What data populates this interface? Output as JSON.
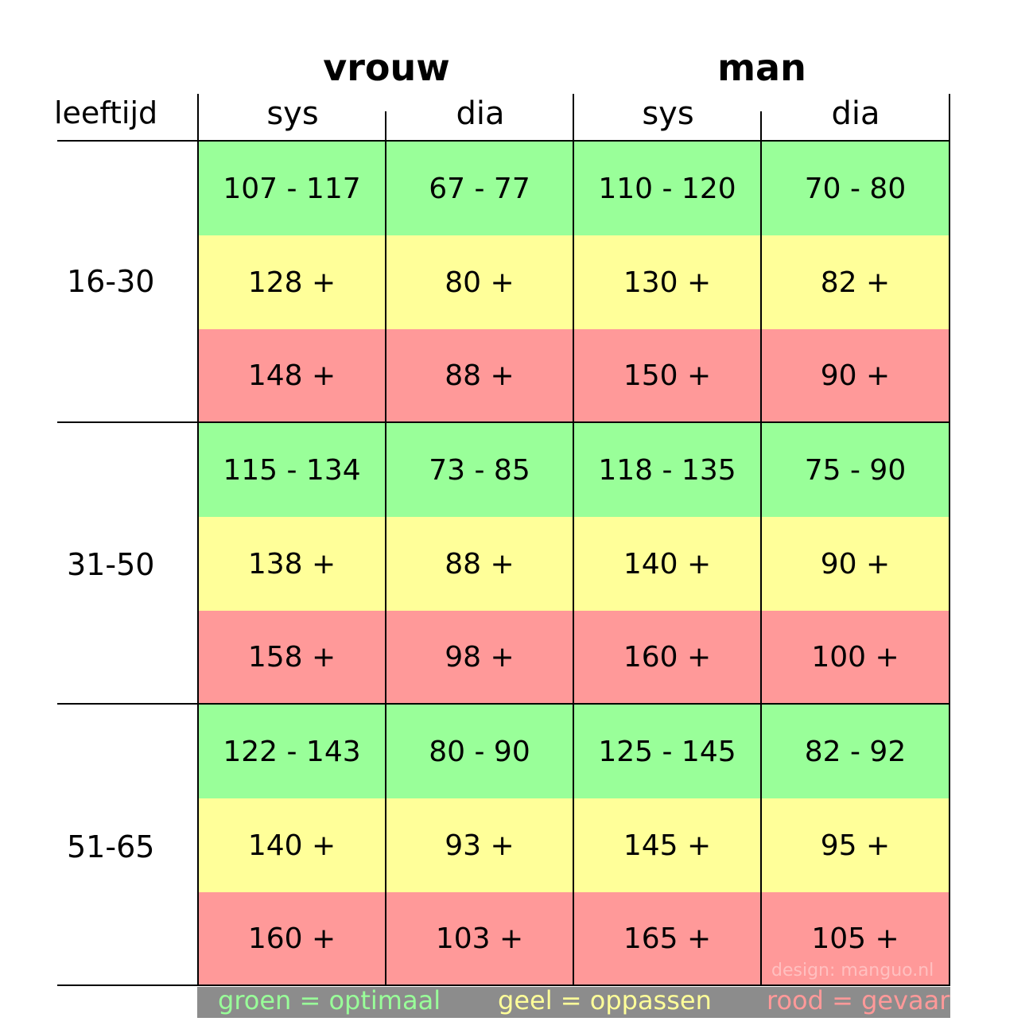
{
  "header": {
    "age_label": "leeftijd",
    "groups": [
      {
        "label": "vrouw",
        "columns": [
          "sys",
          "dia"
        ]
      },
      {
        "label": "man",
        "columns": [
          "sys",
          "dia"
        ]
      }
    ]
  },
  "rows": [
    {
      "age": "16-30",
      "green": [
        "107 - 117",
        "67 - 77",
        "110 - 120",
        "70 - 80"
      ],
      "yellow": [
        "128 +",
        "80 +",
        "130 +",
        "82 +"
      ],
      "red": [
        "148 +",
        "88 +",
        "150 +",
        "90 +"
      ]
    },
    {
      "age": "31-50",
      "green": [
        "115 - 134",
        "73 - 85",
        "118 - 135",
        "75 - 90"
      ],
      "yellow": [
        "138 +",
        "88 +",
        "140 +",
        "90 +"
      ],
      "red": [
        "158 +",
        "98 +",
        "160 +",
        "100 +"
      ]
    },
    {
      "age": "51-65",
      "green": [
        "122 - 143",
        "80 - 90",
        "125 - 145",
        "82 - 92"
      ],
      "yellow": [
        "140 +",
        "93 +",
        "145 +",
        "95 +"
      ],
      "red": [
        "160 +",
        "103 +",
        "165 +",
        "105 +"
      ]
    }
  ],
  "legend": {
    "green": "groen = optimaal",
    "yellow": "geel = oppassen",
    "red": "rood = gevaar"
  },
  "credit": "design: manguo.nl",
  "colors": {
    "green": "#99ff99",
    "yellow": "#ffff99",
    "red": "#ff9999",
    "legend_bg": "#8c8c8c",
    "legend_green_text": "#99ff99",
    "legend_yellow_text": "#ffff99",
    "legend_red_text": "#ff9999"
  }
}
